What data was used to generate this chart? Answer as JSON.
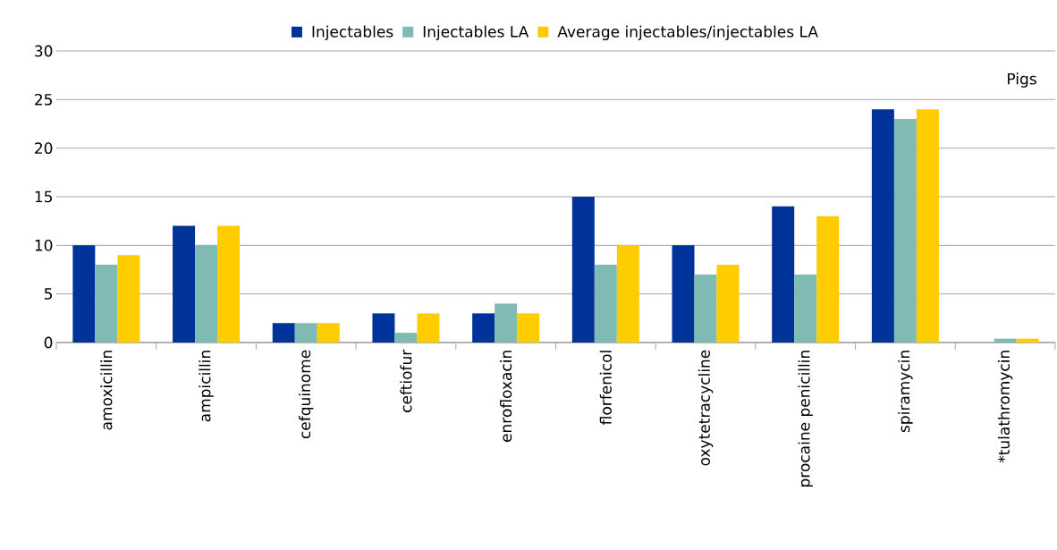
{
  "chart_data": {
    "type": "bar",
    "categories": [
      "amoxicillin",
      "ampicillin",
      "cefquinome",
      "ceftiofur",
      "enrofloxacin",
      "florfenicol",
      "oxytetracycline",
      "procaine penicillin",
      "spiramycin",
      "*tulathromycin"
    ],
    "series": [
      {
        "name": "Injectables",
        "color": "#003399",
        "values": [
          10,
          12,
          2,
          3,
          3,
          15,
          10,
          14,
          24,
          null
        ]
      },
      {
        "name": "Injectables LA",
        "color": "#7fbbb2",
        "values": [
          8,
          10,
          2,
          1,
          4,
          8,
          7,
          7,
          23,
          0.4
        ]
      },
      {
        "name": "Average injectables/injectables LA",
        "color": "#ffcc00",
        "values": [
          9,
          12,
          2,
          3,
          3,
          10,
          8,
          13,
          24,
          0.4
        ]
      }
    ],
    "ylim": [
      0,
      30
    ],
    "yticks": [
      0,
      5,
      10,
      15,
      20,
      25,
      30
    ],
    "grid": "y",
    "legend": "top",
    "annotations": [
      "Pigs"
    ]
  }
}
